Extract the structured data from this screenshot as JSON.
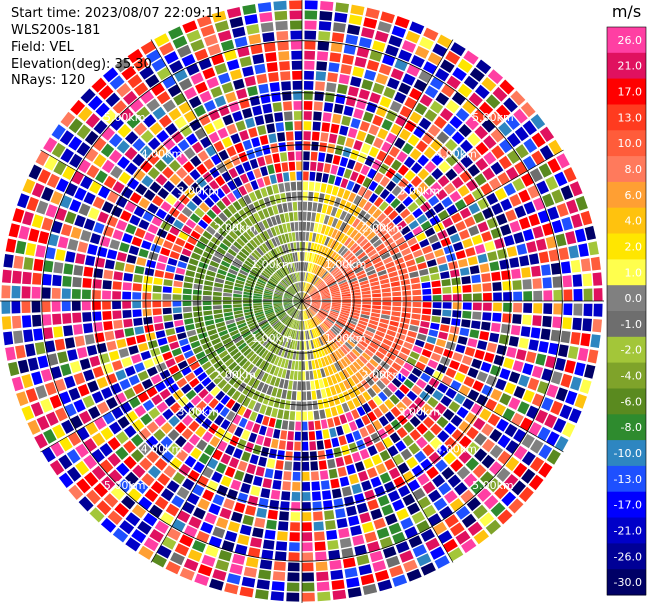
{
  "header": {
    "start_time": "Start time: 2023/08/07 22:09:11",
    "instrument": "WLS200s-181",
    "field": "Field: VEL",
    "elevation": "Elevation(deg): 35.30",
    "nrays": "NRays: 120"
  },
  "chart_data": {
    "type": "heatmap",
    "projection": "polar (PPI scan)",
    "grid": true,
    "range_rings": [
      {
        "label": "1.00km",
        "km": 1.0
      },
      {
        "label": "2.00km",
        "km": 2.0
      },
      {
        "label": "3.00km",
        "km": 3.0
      },
      {
        "label": "4.00km",
        "km": 4.0
      },
      {
        "label": "5.00km",
        "km": 5.0
      }
    ],
    "max_range_km": 5.8,
    "nrays": 120,
    "radial_gates": 30,
    "clean_range_km": 2.3,
    "velocity_pattern": {
      "description": "positive (toward east, yellow/orange) on east side, negative (toward west, green) on west side, noisy beyond ~2.3 km",
      "peak_positive_ms": 12.0,
      "peak_negative_ms": -6.0
    },
    "colorbar": {
      "unit": "m/s",
      "position": "right",
      "ticks": [
        "26.0",
        "21.0",
        "17.0",
        "13.0",
        "10.0",
        "8.0",
        "6.0",
        "4.0",
        "2.0",
        "1.0",
        "0.0",
        "-1.0",
        "-2.0",
        "-4.0",
        "-6.0",
        "-8.0",
        "-10.0",
        "-13.0",
        "-17.0",
        "-21.0",
        "-26.0",
        "-30.0"
      ],
      "bins": [
        {
          "min": 26,
          "max": 30,
          "color": "#ff3fa3"
        },
        {
          "min": 21,
          "max": 26,
          "color": "#e0115f"
        },
        {
          "min": 17,
          "max": 21,
          "color": "#ff0000"
        },
        {
          "min": 13,
          "max": 17,
          "color": "#ff3b1f"
        },
        {
          "min": 10,
          "max": 13,
          "color": "#ff5c3a"
        },
        {
          "min": 8,
          "max": 10,
          "color": "#ff7a5c"
        },
        {
          "min": 6,
          "max": 8,
          "color": "#ff9f33"
        },
        {
          "min": 4,
          "max": 6,
          "color": "#ffc20e"
        },
        {
          "min": 2,
          "max": 4,
          "color": "#ffe600"
        },
        {
          "min": 1,
          "max": 2,
          "color": "#ffff4d"
        },
        {
          "min": 0,
          "max": 1,
          "color": "#808080"
        },
        {
          "min": -1,
          "max": 0,
          "color": "#6e6e6e"
        },
        {
          "min": -2,
          "max": -1,
          "color": "#a3c639"
        },
        {
          "min": -4,
          "max": -2,
          "color": "#7fa32a"
        },
        {
          "min": -6,
          "max": -4,
          "color": "#5a8a1f"
        },
        {
          "min": -8,
          "max": -6,
          "color": "#2e8b2e"
        },
        {
          "min": -10,
          "max": -8,
          "color": "#2e86c1"
        },
        {
          "min": -13,
          "max": -10,
          "color": "#1e50ff"
        },
        {
          "min": -17,
          "max": -13,
          "color": "#0000ff"
        },
        {
          "min": -21,
          "max": -17,
          "color": "#0000c8"
        },
        {
          "min": -26,
          "max": -21,
          "color": "#000096"
        },
        {
          "min": -30,
          "max": -26,
          "color": "#000066"
        }
      ]
    }
  }
}
